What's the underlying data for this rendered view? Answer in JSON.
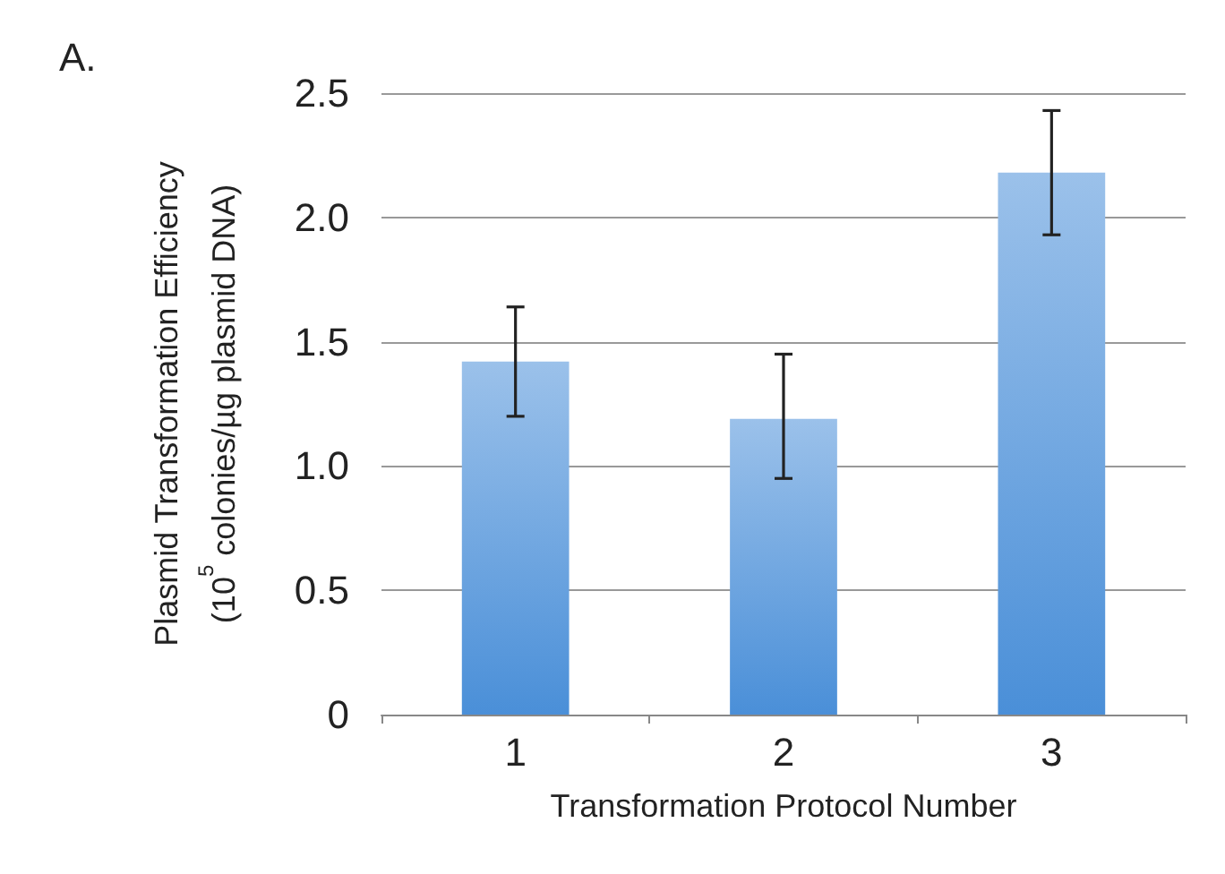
{
  "chart_data": {
    "type": "bar",
    "title": "A.",
    "xlabel": "Transformation Protocol Number",
    "ylabel": "Plasmid Transformation Efficiency\n(10$^{5}$ colonies/µg plasmid DNA)",
    "categories": [
      "1",
      "2",
      "3"
    ],
    "values": [
      1.42,
      1.19,
      2.18
    ],
    "errors": [
      [
        1.2,
        1.64
      ],
      [
        0.95,
        1.45
      ],
      [
        1.93,
        2.43
      ]
    ],
    "color": "#4a8fd8",
    "ylim": [
      0,
      2.5
    ],
    "yticks": [
      0,
      0.5,
      {
        "value": 1,
        "label": "1.0"
      },
      1.5,
      {
        "value": 2,
        "label": "2.0"
      },
      2.5
    ],
    "grid": "y"
  }
}
